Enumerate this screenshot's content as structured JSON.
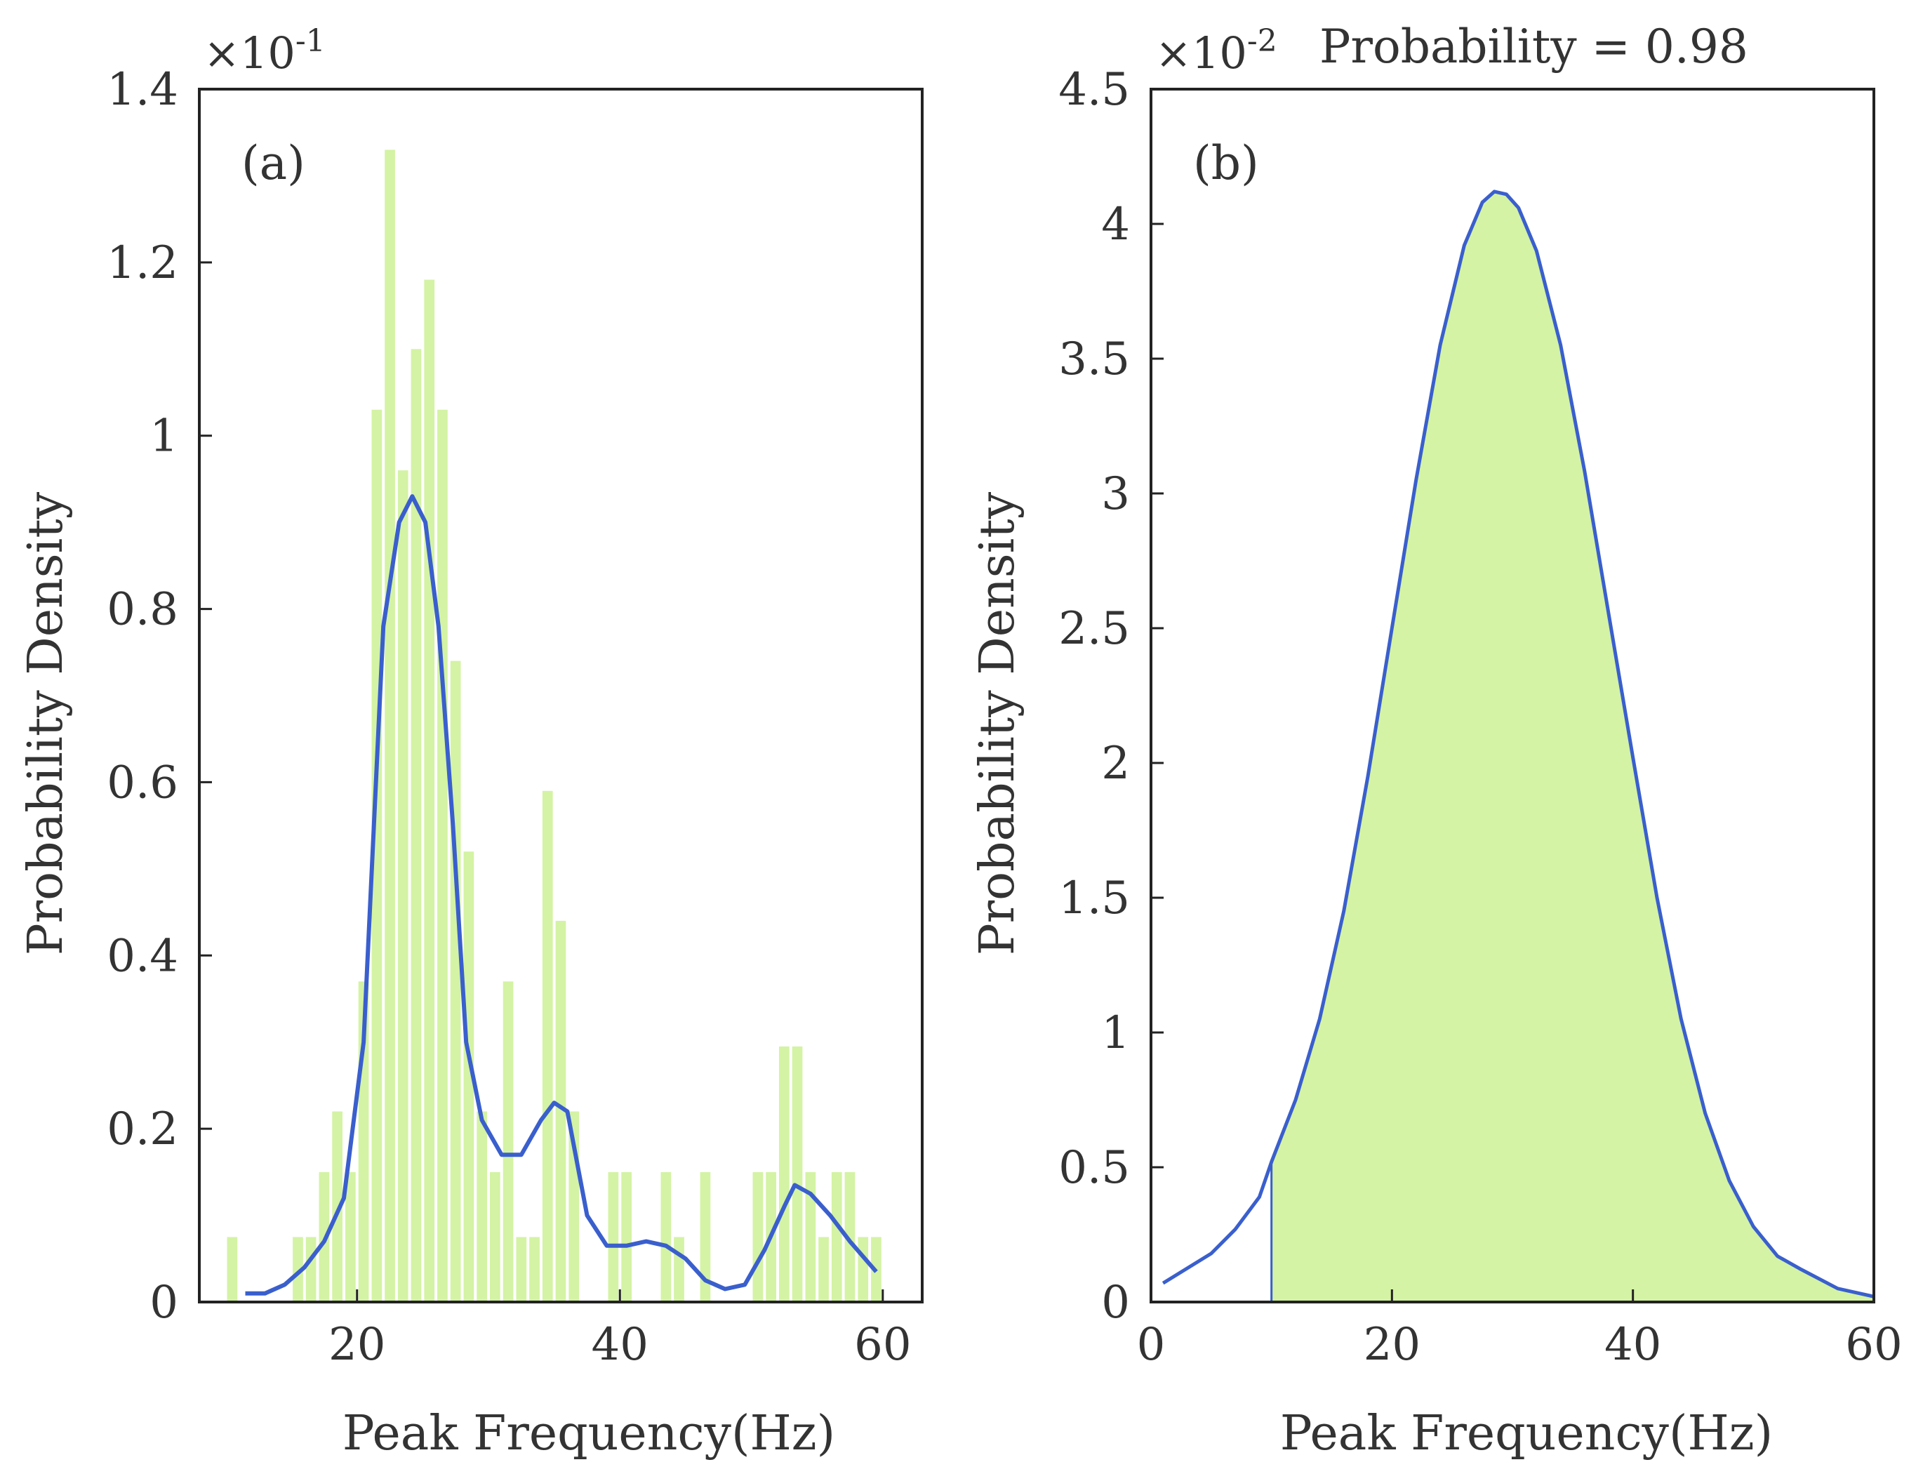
{
  "chart_data": [
    {
      "type": "bar",
      "panel_label": "(a)",
      "xlabel": "Peak Frequency(Hz)",
      "ylabel": "Probability Density",
      "xlim": [
        8,
        63
      ],
      "ylim": [
        0,
        1.4
      ],
      "y_exponent": {
        "base": "×10",
        "power": "-1"
      },
      "xticks": [
        20,
        40,
        60
      ],
      "xtick_labels": [
        "20",
        "40",
        "60"
      ],
      "yticks": [
        0,
        0.2,
        0.4,
        0.6,
        0.8,
        1.0,
        1.2,
        1.4
      ],
      "ytick_labels": [
        "0",
        "0.2",
        "0.4",
        "0.6",
        "0.8",
        "1",
        "1.2",
        "1.4"
      ],
      "bar_color": "#d4f3a4",
      "bin_width": 1,
      "bins": [
        {
          "x": 10.5,
          "value": 0.075
        },
        {
          "x": 15.5,
          "value": 0.075
        },
        {
          "x": 16.5,
          "value": 0.075
        },
        {
          "x": 17.5,
          "value": 0.15
        },
        {
          "x": 18.5,
          "value": 0.22
        },
        {
          "x": 19.5,
          "value": 0.15
        },
        {
          "x": 20.5,
          "value": 0.37
        },
        {
          "x": 21.5,
          "value": 1.03
        },
        {
          "x": 22.5,
          "value": 1.33
        },
        {
          "x": 23.5,
          "value": 0.96
        },
        {
          "x": 24.5,
          "value": 1.1
        },
        {
          "x": 25.5,
          "value": 1.18
        },
        {
          "x": 26.5,
          "value": 1.03
        },
        {
          "x": 27.5,
          "value": 0.74
        },
        {
          "x": 28.5,
          "value": 0.52
        },
        {
          "x": 29.5,
          "value": 0.22
        },
        {
          "x": 30.5,
          "value": 0.15
        },
        {
          "x": 31.5,
          "value": 0.37
        },
        {
          "x": 32.5,
          "value": 0.075
        },
        {
          "x": 33.5,
          "value": 0.075
        },
        {
          "x": 34.5,
          "value": 0.59
        },
        {
          "x": 35.5,
          "value": 0.44
        },
        {
          "x": 36.5,
          "value": 0.22
        },
        {
          "x": 39.5,
          "value": 0.15
        },
        {
          "x": 40.5,
          "value": 0.15
        },
        {
          "x": 43.5,
          "value": 0.15
        },
        {
          "x": 44.5,
          "value": 0.075
        },
        {
          "x": 46.5,
          "value": 0.15
        },
        {
          "x": 50.5,
          "value": 0.15
        },
        {
          "x": 51.5,
          "value": 0.15
        },
        {
          "x": 52.5,
          "value": 0.295
        },
        {
          "x": 53.5,
          "value": 0.295
        },
        {
          "x": 54.5,
          "value": 0.15
        },
        {
          "x": 55.5,
          "value": 0.075
        },
        {
          "x": 56.5,
          "value": 0.15
        },
        {
          "x": 57.5,
          "value": 0.15
        },
        {
          "x": 58.5,
          "value": 0.075
        },
        {
          "x": 59.5,
          "value": 0.075
        }
      ],
      "density_curve": {
        "name": "Kernel density estimate",
        "color": "#3a5fcd",
        "x": [
          11.5,
          13,
          14.5,
          16,
          17.5,
          19,
          20.5,
          22,
          23.2,
          24.2,
          25.2,
          26.2,
          27.3,
          28.3,
          29.5,
          31,
          32.5,
          34,
          35,
          36,
          37.5,
          39,
          40.5,
          42,
          43.5,
          45,
          46.5,
          48,
          49.5,
          51,
          52.5,
          53.3,
          54.5,
          56,
          57.5,
          59.5
        ],
        "y": [
          0.01,
          0.01,
          0.02,
          0.04,
          0.07,
          0.12,
          0.3,
          0.78,
          0.9,
          0.93,
          0.9,
          0.78,
          0.55,
          0.3,
          0.21,
          0.17,
          0.17,
          0.21,
          0.23,
          0.22,
          0.1,
          0.065,
          0.065,
          0.07,
          0.065,
          0.05,
          0.025,
          0.015,
          0.02,
          0.06,
          0.11,
          0.135,
          0.125,
          0.1,
          0.07,
          0.035
        ]
      }
    },
    {
      "type": "area",
      "panel_label": "(b)",
      "xlabel": "Peak Frequency(Hz)",
      "ylabel": "Probability Density",
      "xlim": [
        0,
        60
      ],
      "ylim": [
        0,
        4.5
      ],
      "y_exponent": {
        "base": "×10",
        "power": "-2"
      },
      "annotation": "Probability = 0.98",
      "xticks": [
        0,
        20,
        40,
        60
      ],
      "xtick_labels": [
        "0",
        "20",
        "40",
        "60"
      ],
      "yticks": [
        0,
        0.5,
        1,
        1.5,
        2,
        2.5,
        3,
        3.5,
        4,
        4.5
      ],
      "ytick_labels": [
        "0",
        "0.5",
        "1",
        "1.5",
        "2",
        "2.5",
        "3",
        "3.5",
        "4",
        "4.5"
      ],
      "shade_from_x": 10,
      "shade_color": "#d4f3a4",
      "line_color": "#3a5fcd",
      "x": [
        1,
        5,
        7,
        9,
        10,
        12,
        14,
        16,
        18,
        20,
        22,
        24,
        26,
        27.5,
        28.5,
        29.5,
        30.5,
        32,
        34,
        36,
        38,
        40,
        42,
        44,
        46,
        48,
        50,
        52,
        54,
        57,
        60
      ],
      "y": [
        0.07,
        0.18,
        0.27,
        0.39,
        0.52,
        0.75,
        1.05,
        1.45,
        1.95,
        2.5,
        3.05,
        3.55,
        3.92,
        4.08,
        4.12,
        4.11,
        4.06,
        3.9,
        3.55,
        3.08,
        2.55,
        2.02,
        1.5,
        1.05,
        0.7,
        0.45,
        0.28,
        0.17,
        0.12,
        0.05,
        0.02
      ]
    }
  ]
}
